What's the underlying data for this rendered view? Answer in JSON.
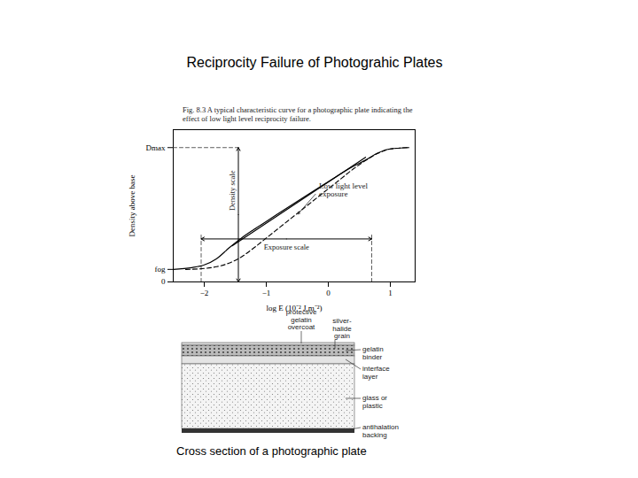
{
  "title": "Reciprocity Failure of Photograhic Plates",
  "chart_data": {
    "type": "line",
    "caption": "Fig. 8.3 A typical characteristic curve for a photographic plate indicating the effect of low light level reciprocity failure.",
    "x_label": "log E (10⁻² J m⁻²)",
    "y_label": "Density above base",
    "xlim": [
      -2.5,
      1.4
    ],
    "xticks": [
      -2,
      -1,
      0,
      1
    ],
    "ylim": [
      0,
      3.4
    ],
    "yticks": [
      0,
      {
        "value": 0.28,
        "label": "fog"
      },
      {
        "value": 3.0,
        "label": "Dmax"
      }
    ],
    "grid": false,
    "series": [
      {
        "color": "#000000",
        "line_style": "solid",
        "x": [
          -2.5,
          -2.2,
          -2.0,
          -1.8,
          -1.6,
          -1.4,
          -1.2,
          -1.0,
          -0.5,
          0,
          0.4,
          0.6,
          0.8,
          1.0,
          1.3
        ],
        "values": [
          0.28,
          0.32,
          0.38,
          0.52,
          0.76,
          0.98,
          1.17,
          1.35,
          1.8,
          2.24,
          2.58,
          2.72,
          2.88,
          2.97,
          3.0
        ]
      },
      {
        "color": "#000000",
        "line_style": "solid",
        "x": [
          -1.55,
          0.6
        ],
        "values": [
          0.806,
          2.784
        ]
      },
      {
        "name": "Low light level exposure",
        "color": "#000000",
        "line_style": "dashed",
        "label_at": [
          -0.15,
          2.05
        ],
        "pointer_to": [
          -0.5,
          1.5
        ],
        "x": [
          -2.3,
          -2.0,
          -1.8,
          -1.6,
          -1.4,
          -1.2,
          -1.0,
          -0.6,
          -0.2,
          0.2,
          0.4,
          0.6,
          0.8,
          1.0,
          1.3
        ],
        "values": [
          0.28,
          0.3,
          0.34,
          0.42,
          0.56,
          0.76,
          0.98,
          1.42,
          1.86,
          2.3,
          2.52,
          2.71,
          2.87,
          2.97,
          3.0
        ]
      }
    ],
    "annotations": [
      {
        "text": "Density scale",
        "x": -1.45,
        "y": [
          0,
          3.0
        ]
      },
      {
        "text": "Exposure scale",
        "x": [
          -2.05,
          0.7
        ],
        "y": 0.96
      }
    ],
    "reference_lines": [
      {
        "x": [
          -2.5,
          -1.45
        ],
        "y": 3.0
      },
      {
        "x": -2.05,
        "y": [
          0,
          1.08
        ]
      },
      {
        "x": 0.7,
        "y": [
          0,
          1.08
        ]
      }
    ]
  },
  "diagram": {
    "caption": "Cross section of a photographic plate",
    "top_labels": [
      [
        "protective",
        "gelatin",
        "overcoat"
      ],
      [
        "silver-",
        "halide",
        "grain"
      ]
    ],
    "side_labels": [
      [
        "gelatin",
        "binder"
      ],
      [
        "interface",
        "layer"
      ],
      [
        "glass or",
        "plastic"
      ],
      [
        "antihalation",
        "backing"
      ]
    ]
  }
}
